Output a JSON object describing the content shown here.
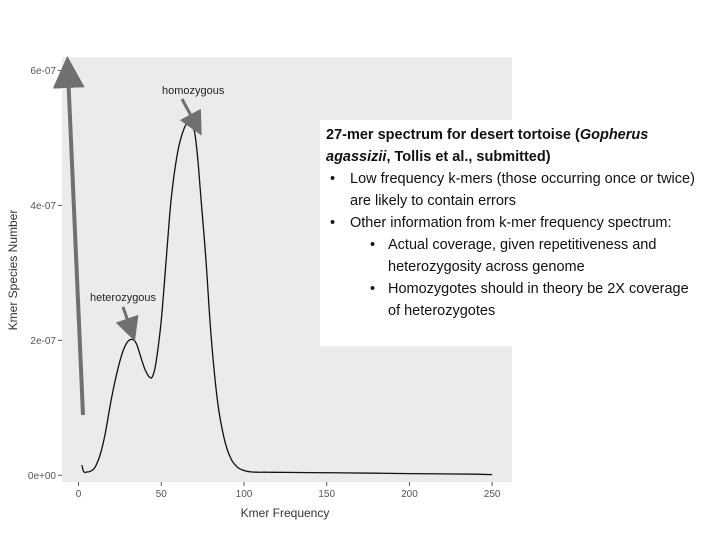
{
  "chart_data": {
    "type": "line",
    "xlabel": "Kmer Frequency",
    "ylabel": "Kmer Species Number",
    "xlim": [
      -10,
      262
    ],
    "ylim": [
      -1e-08,
      6.2e-07
    ],
    "x_ticks": [
      0,
      50,
      100,
      150,
      200,
      250
    ],
    "x_tick_labels": [
      "0",
      "50",
      "100",
      "150",
      "200",
      "250"
    ],
    "y_ticks": [
      0,
      2e-07,
      4e-07,
      6e-07
    ],
    "y_tick_labels": [
      "0e+00",
      "2e-07",
      "4e-07",
      "6e-07"
    ],
    "grid": false,
    "series": [
      {
        "x": [
          2,
          3,
          4,
          5,
          6,
          8,
          10,
          13,
          16,
          20,
          24,
          27,
          30,
          33,
          35,
          37,
          40,
          43,
          45,
          47,
          50,
          53,
          56,
          60,
          64,
          67,
          70,
          72,
          74,
          77,
          80,
          84,
          88,
          92,
          96,
          100,
          104,
          108,
          112,
          118,
          125,
          140,
          160,
          180,
          200,
          220,
          240,
          250
        ],
        "y": [
          1.5e-08,
          6e-09,
          4e-09,
          5e-09,
          5e-09,
          7e-09,
          1.2e-08,
          3e-08,
          6e-08,
          1.15e-07,
          1.6e-07,
          1.85e-07,
          1.99e-07,
          2.01e-07,
          1.95e-07,
          1.8e-07,
          1.58e-07,
          1.45e-07,
          1.48e-07,
          1.7e-07,
          2.3e-07,
          3.2e-07,
          4.1e-07,
          4.8e-07,
          5.15e-07,
          5.22e-07,
          5.1e-07,
          4.7e-07,
          4.1e-07,
          3.2e-07,
          2.1e-07,
          1.1e-07,
          5.5e-08,
          2.5e-08,
          1.2e-08,
          7e-09,
          5e-09,
          4.5e-09,
          4.5e-09,
          4.4e-09,
          4.3e-09,
          4e-09,
          3.5e-09,
          3e-09,
          2.5e-09,
          2e-09,
          1.5e-09,
          1e-09
        ]
      }
    ],
    "annotations": [
      {
        "text": "homozygous",
        "arrow_to": [
          72,
          5.2e-07
        ]
      },
      {
        "text": "heterozygous",
        "arrow_to": [
          32,
          2e-07
        ]
      }
    ],
    "colors": {
      "panel": "#ebebeb",
      "line": "#111111",
      "arrow": "#707070"
    }
  },
  "textbox": {
    "title_part1": "27-mer spectrum for desert tortoise (",
    "title_italic": "Gopherus agassizii",
    "title_part2": ", Tollis et al., submitted)",
    "bullet1": "Low frequency k-mers (those occurring once or twice) are likely to contain errors",
    "bullet2": "Other information from k-mer frequency spectrum:",
    "sub1": "Actual coverage, given repetitiveness and heterozygosity across genome",
    "sub2": "Homozygotes should in theory be 2X coverage of heterozygotes"
  }
}
